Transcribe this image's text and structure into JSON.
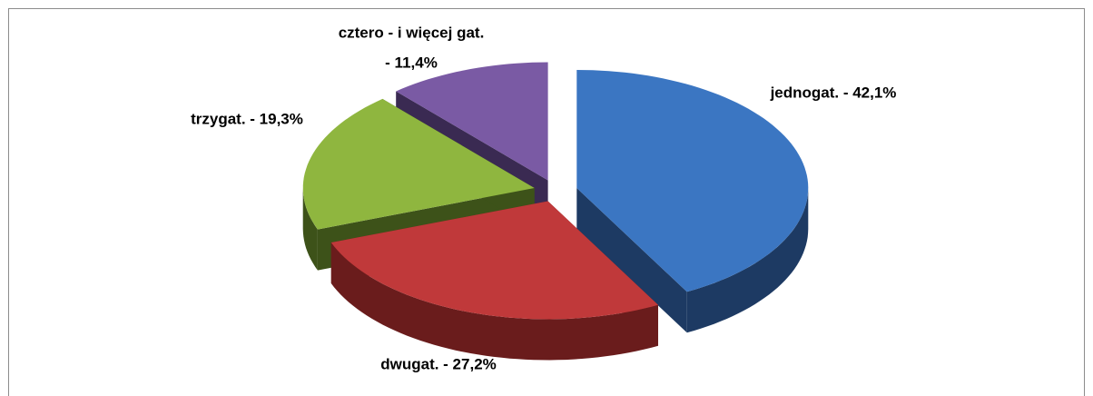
{
  "chart_data": {
    "type": "pie",
    "values": [
      42.1,
      27.2,
      19.3,
      11.4
    ],
    "value_labels": [
      "jednogat. - 42,1%",
      "dwugat. - 27,2%",
      "trzygat. - 19,3%",
      [
        "cztero - i więcej gat.",
        "- 11,4%"
      ]
    ],
    "colors": [
      "#3b76c2",
      "#c0393a",
      "#8fb63f",
      "#7a5aa4"
    ],
    "side_colors": [
      "#1d3a63",
      "#6a1c1c",
      "#3d5219",
      "#3a2a52"
    ]
  }
}
